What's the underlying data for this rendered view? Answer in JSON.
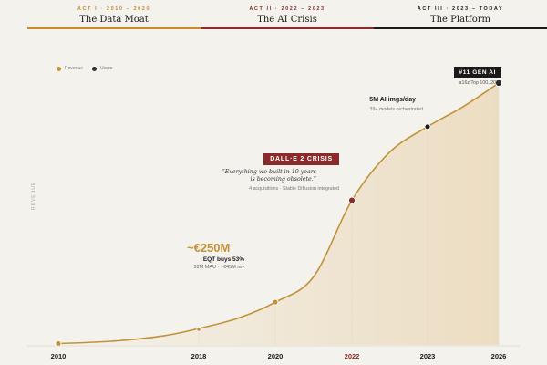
{
  "acts": [
    {
      "kicker": "ACT I · 2010 – 2020",
      "title": "The Data Moat",
      "color": "#c58b2c"
    },
    {
      "kicker": "ACT II · 2022 – 2023",
      "title": "The AI Crisis",
      "color": "#8a2a2a"
    },
    {
      "kicker": "ACT III · 2023 – TODAY",
      "title": "The Platform",
      "color": "#1a1a1a"
    }
  ],
  "legend": [
    {
      "label": "Revenue",
      "color": "#c2923a"
    },
    {
      "label": "Users",
      "color": "#333333"
    }
  ],
  "ylabel": "REVENUE",
  "colors": {
    "line": "#c2923a",
    "fill": "#ecdcc0",
    "crisis": "#8a2a2a",
    "dark": "#1a1a1a",
    "bg": "#f4f2ec"
  },
  "annotations": {
    "valuation": "~€250M",
    "eqt": "EQT buys 53%",
    "mau": "32M MAU · ~€45M rev",
    "crisis_badge": "DALL·E 2 CRISIS",
    "quote_line1": "“Everything we built in 10 years",
    "quote_line2": "is becoming obsolete.”",
    "acquisitions": "4 acquisitions · Stable Diffusion integrated",
    "imgs": "5M AI imgs/day",
    "models": "39+ models orchestrated",
    "badge_top": "#11 GEN AI",
    "a16z": "a16z Top 100, 2026"
  },
  "chart_data": {
    "type": "area",
    "x": [
      2010,
      2018,
      2020,
      2022,
      2023,
      2026
    ],
    "milestones": [
      {
        "year": 2010,
        "y": 1.5,
        "color": "#c2923a"
      },
      {
        "year": 2018,
        "y": 17,
        "color": "#c2923a"
      },
      {
        "year": 2020,
        "y": 47,
        "color": "#c2923a"
      },
      {
        "year": 2022,
        "y": 159,
        "color": "#8a2a2a"
      },
      {
        "year": 2023,
        "y": 240,
        "color": "#1a1a1a"
      },
      {
        "year": 2026,
        "y": 288,
        "color": "#1a1a1a"
      }
    ],
    "curve_y": [
      1.5,
      4,
      10,
      18,
      29,
      47,
      75,
      159,
      212,
      240,
      262,
      288
    ],
    "curve_x": [
      2010,
      2013,
      2016,
      2018,
      2019,
      2020,
      2021,
      2022,
      2022.5,
      2023,
      2024.5,
      2026
    ],
    "xlim": [
      2010,
      2026
    ],
    "ylim": [
      0,
      300
    ],
    "tick_colors": {
      "2022": "#8a2a2a"
    }
  }
}
